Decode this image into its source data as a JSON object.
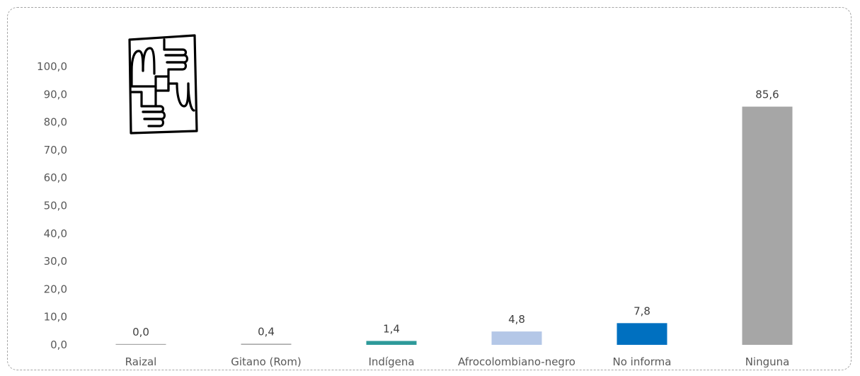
{
  "chart_data": {
    "type": "bar",
    "categories": [
      "Raizal",
      "Gitano (Rom)",
      "Indígena",
      "Afrocolombiano-negro",
      "No informa",
      "Ninguna"
    ],
    "values": [
      0.0,
      0.4,
      1.4,
      4.8,
      7.8,
      85.6
    ],
    "value_labels": [
      "0,0",
      "0,4",
      "1,4",
      "4,8",
      "7,8",
      "85,6"
    ],
    "bar_colors": [
      "#a6a6a6",
      "#a6a6a6",
      "#2e9a9a",
      "#b4c7e7",
      "#0070c0",
      "#a6a6a6"
    ],
    "ylim": [
      0,
      100
    ],
    "yticks": [
      0,
      10,
      20,
      30,
      40,
      50,
      60,
      70,
      80,
      90,
      100
    ],
    "ytick_labels": [
      "0,0",
      "10,0",
      "20,0",
      "30,0",
      "40,0",
      "50,0",
      "60,0",
      "70,0",
      "80,0",
      "90,0",
      "100,0"
    ],
    "grid": false,
    "legend": "none",
    "icon": "hands-together-icon"
  }
}
